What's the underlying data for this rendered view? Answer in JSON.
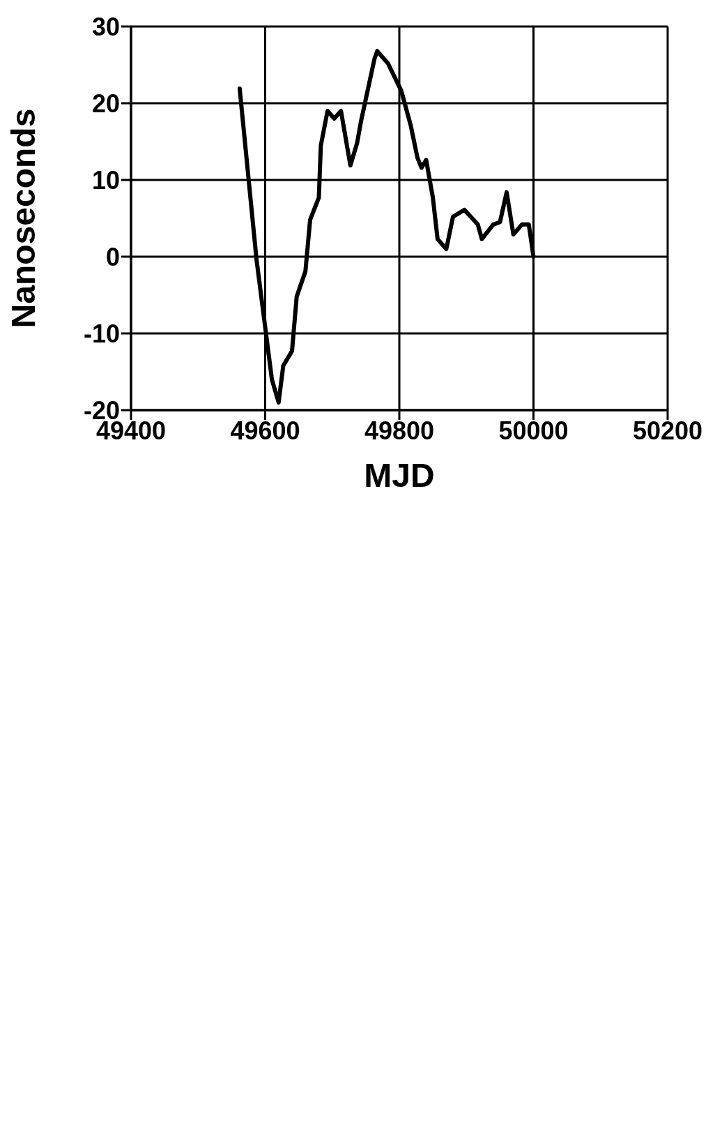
{
  "chart_data": {
    "type": "line",
    "xlabel": "MJD",
    "ylabel": "Nanoseconds",
    "x": [
      49562,
      49587,
      49610,
      49620,
      49627,
      49640,
      49647,
      49660,
      49667,
      49680,
      49683,
      49693,
      49703,
      49713,
      49727,
      49737,
      49743,
      49763,
      49767,
      49783,
      49803,
      49817,
      49827,
      49833,
      49840,
      49850,
      49857,
      49870,
      49880,
      49897,
      49917,
      49923,
      49940,
      49950,
      49960,
      49970,
      49983,
      49993,
      50000
    ],
    "series": [
      {
        "color": "#000000",
        "values": [
          21.9,
          -0.3,
          -16,
          -19,
          -14.2,
          -12.3,
          -5.2,
          -1.9,
          4.8,
          7.7,
          14.5,
          19,
          18,
          19,
          11.9,
          14.8,
          17.7,
          25.8,
          26.8,
          25.2,
          21.6,
          17.1,
          12.9,
          11.6,
          12.6,
          7.7,
          2.3,
          1.0,
          5.2,
          6.1,
          4.2,
          2.3,
          4.2,
          4.5,
          8.4,
          2.9,
          4.2,
          4.2,
          0
        ]
      }
    ],
    "xlim": [
      49400,
      50200
    ],
    "xticks": [
      49400,
      49600,
      49800,
      50000,
      50200
    ],
    "ylim": [
      -20,
      30
    ],
    "yticks": [
      -20,
      -10,
      0,
      10,
      20,
      30
    ],
    "grid": true,
    "marker": "none",
    "line_style": "solid"
  }
}
